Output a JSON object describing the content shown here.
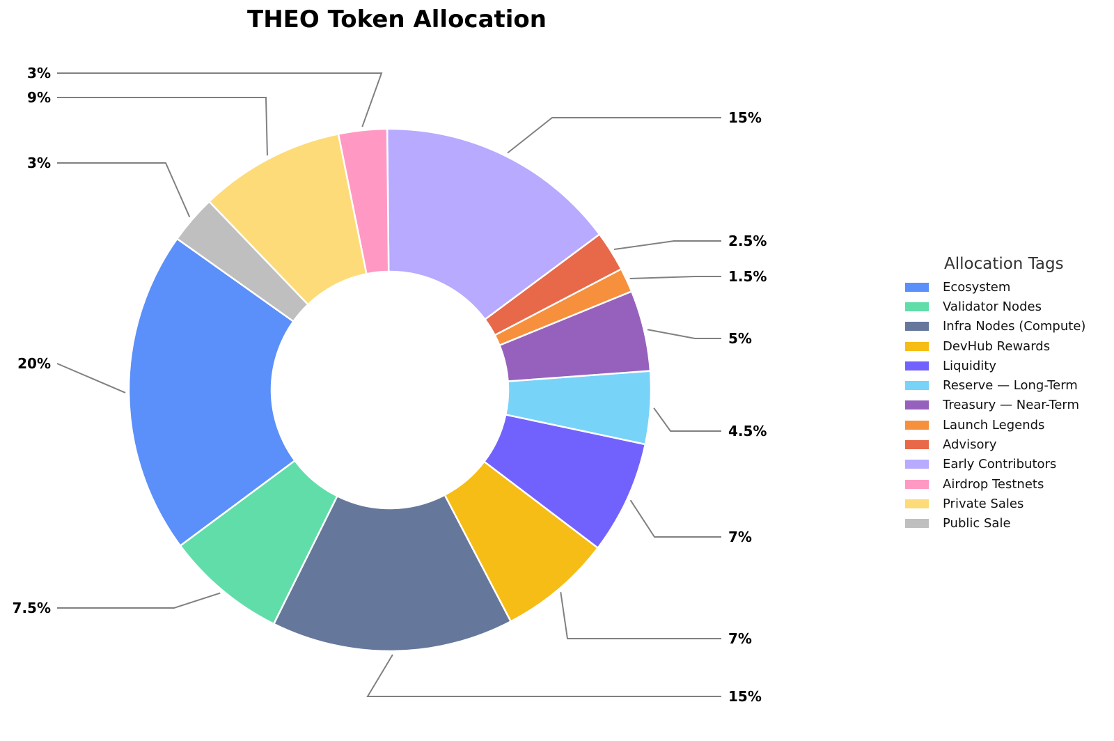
{
  "chart_data": {
    "type": "pie",
    "title": "THEO Token Allocation",
    "legend_title": "Allocation Tags",
    "legend_position": "right",
    "categories": [
      "Ecosystem",
      "Validator Nodes",
      "Infra Nodes (Compute)",
      "DevHub Rewards",
      "Liquidity",
      "Reserve — Long-Term",
      "Treasury — Near-Term",
      "Launch Legends",
      "Advisory",
      "Early Contributors",
      "Airdrop Testnets",
      "Private Sales",
      "Public Sale"
    ],
    "values": [
      20,
      7.5,
      15,
      7,
      7,
      4.5,
      5,
      1.5,
      2.5,
      15,
      3,
      9,
      3
    ],
    "labels": [
      "20%",
      "7.5%",
      "15%",
      "7%",
      "7%",
      "4.5%",
      "5%",
      "1.5%",
      "2.5%",
      "15%",
      "3%",
      "9%",
      "3%"
    ],
    "colors": [
      "#5b8ff9",
      "#61ddaa",
      "#65789b",
      "#f6bd16",
      "#7262fd",
      "#78d3f8",
      "#9661bc",
      "#f6903d",
      "#e8684a",
      "#b7aaff",
      "#ff99c3",
      "#fddb78",
      "#bfbfbf"
    ]
  }
}
